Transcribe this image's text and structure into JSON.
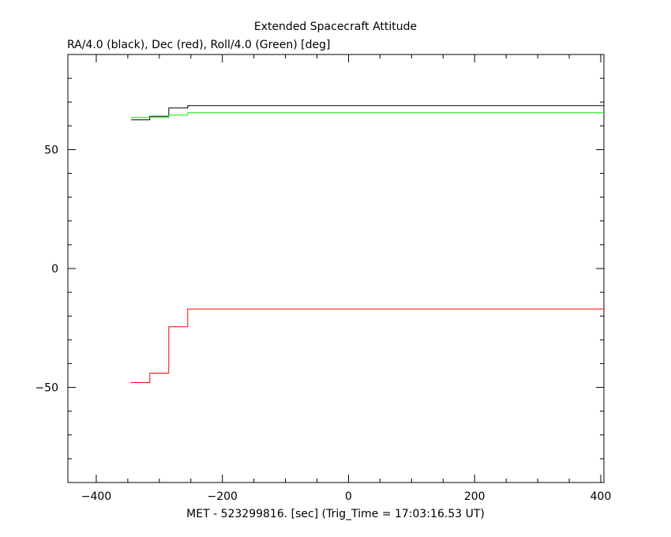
{
  "chart_data": {
    "type": "line",
    "title": "Extended Spacecraft Attitude",
    "subtitle": "RA/4.0 (black), Dec (red), Roll/4.0 (Green) [deg]",
    "xlabel": "MET - 523299816. [sec] (Trig_Time = 17:03:16.53 UT)",
    "ylabel": "",
    "xlim": [
      -445,
      405
    ],
    "ylim": [
      -90,
      90
    ],
    "x_ticks": [
      -400,
      -200,
      0,
      200,
      400
    ],
    "x_tick_labels": [
      "−400",
      "−200",
      "0",
      "200",
      "400"
    ],
    "y_ticks": [
      -50,
      0,
      50
    ],
    "y_tick_labels": [
      "−50",
      "0",
      "50"
    ],
    "grid": false,
    "series": [
      {
        "name": "RA/4.0",
        "color": "#000000",
        "x": [
          -345,
          -315,
          -315,
          -285,
          -285,
          -255,
          -255,
          405
        ],
        "y": [
          62.5,
          62.5,
          64,
          64,
          67.5,
          67.5,
          68.5,
          68.5
        ]
      },
      {
        "name": "Dec",
        "color": "#ff0000",
        "x": [
          -345,
          -315,
          -315,
          -285,
          -285,
          -255,
          -255,
          405
        ],
        "y": [
          -48,
          -48,
          -44,
          -44,
          -24.5,
          -24.5,
          -17,
          -17
        ]
      },
      {
        "name": "Roll/4.0",
        "color": "#00ee00",
        "x": [
          -345,
          -285,
          -285,
          -255,
          -255,
          405
        ],
        "y": [
          63.5,
          63.5,
          64.5,
          64.5,
          65.5,
          65.5
        ]
      }
    ]
  }
}
